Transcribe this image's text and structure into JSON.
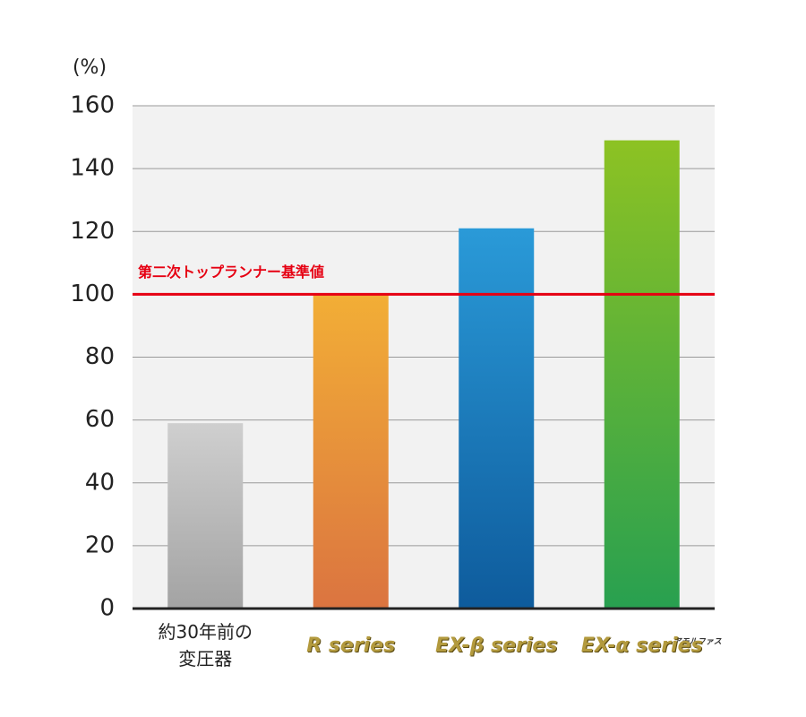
{
  "chart_data": {
    "type": "bar",
    "y_label": "(%)",
    "categories": [
      "約30年前の\n変圧器",
      "R series",
      "EX-β series",
      "EX-α series"
    ],
    "category_badges": [
      null,
      null,
      null,
      "アモルファス"
    ],
    "values": [
      59,
      100,
      121,
      149
    ],
    "colors": [
      [
        "#cfcfcf",
        "#a3a3a3"
      ],
      [
        "#f2ae36",
        "#db7440"
      ],
      [
        "#2a9ad8",
        "#0e5b9c"
      ],
      [
        "#8dc223",
        "#28a050"
      ]
    ],
    "ylim": [
      0,
      160
    ],
    "yticks": [
      0,
      20,
      40,
      60,
      80,
      100,
      120,
      140,
      160
    ],
    "grid": true,
    "reference_lines": [
      {
        "value": 100,
        "label": "第二次トップランナー基準値",
        "color": "#e60012"
      }
    ]
  }
}
